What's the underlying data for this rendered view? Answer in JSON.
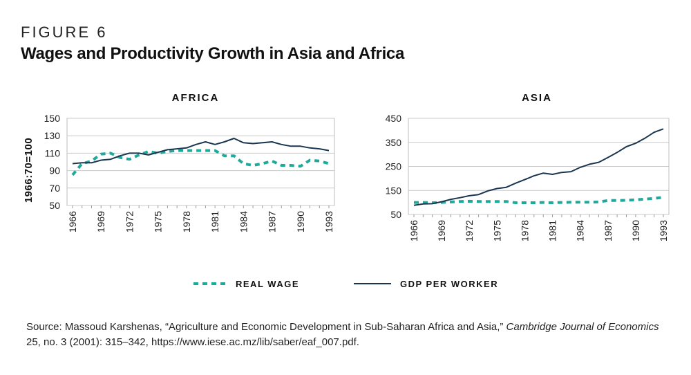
{
  "figure_label": "FIGURE 6",
  "title": "Wages and Productivity Growth in Asia and Africa",
  "y_axis_label": "1966:70=100",
  "legend": [
    {
      "name": "REAL WAGE",
      "color": "#1fa99a",
      "style": "dashed"
    },
    {
      "name": "GDP PER WORKER",
      "color": "#1a3550",
      "style": "solid"
    }
  ],
  "source": {
    "prefix": "Source: Massoud Karshenas, “Agriculture and Economic Development in Sub-Saharan Africa and Asia,” ",
    "journal": "Cambridge Journal of Economics",
    "suffix": " 25, no. 3 (2001): 315–342, https://www.iese.ac.mz/lib/saber/eaf_007.pdf."
  },
  "chart_data": [
    {
      "type": "line",
      "title": "AFRICA",
      "ylabel": "1966:70=100",
      "xlabel": "",
      "ylim": [
        50,
        150
      ],
      "yticks": [
        50,
        70,
        90,
        110,
        130,
        150
      ],
      "xticks": [
        "1966",
        "1969",
        "1972",
        "1975",
        "1978",
        "1981",
        "1984",
        "1987",
        "1990",
        "1993"
      ],
      "x": [
        1966,
        1967,
        1968,
        1969,
        1970,
        1971,
        1972,
        1973,
        1974,
        1975,
        1976,
        1977,
        1978,
        1979,
        1980,
        1981,
        1982,
        1983,
        1984,
        1985,
        1986,
        1987,
        1988,
        1989,
        1990,
        1991,
        1992,
        1993
      ],
      "series": [
        {
          "name": "REAL WAGE",
          "values": [
            85,
            98,
            101,
            109,
            110,
            105,
            103,
            108,
            112,
            110,
            112,
            113,
            113,
            113,
            113,
            113,
            107,
            107,
            98,
            96,
            98,
            101,
            96,
            96,
            95,
            102,
            101,
            98
          ]
        },
        {
          "name": "GDP PER WORKER",
          "values": [
            98,
            99,
            99,
            102,
            103,
            107,
            110,
            110,
            108,
            111,
            114,
            115,
            116,
            120,
            123,
            120,
            123,
            127,
            122,
            121,
            122,
            123,
            120,
            118,
            118,
            116,
            115,
            113
          ]
        }
      ]
    },
    {
      "type": "line",
      "title": "ASIA",
      "ylabel": "",
      "xlabel": "",
      "ylim": [
        50,
        450
      ],
      "yticks": [
        50,
        150,
        250,
        350,
        450
      ],
      "xticks": [
        "1966",
        "1969",
        "1972",
        "1975",
        "1978",
        "1981",
        "1984",
        "1987",
        "1990",
        "1993"
      ],
      "x": [
        1966,
        1967,
        1968,
        1969,
        1970,
        1971,
        1972,
        1973,
        1974,
        1975,
        1976,
        1977,
        1978,
        1979,
        1980,
        1981,
        1982,
        1983,
        1984,
        1985,
        1986,
        1987,
        1988,
        1989,
        1990,
        1991,
        1992,
        1993
      ],
      "series": [
        {
          "name": "REAL WAGE",
          "values": [
            100,
            100,
            99,
            100,
            102,
            104,
            105,
            104,
            104,
            104,
            104,
            99,
            99,
            99,
            100,
            99,
            100,
            101,
            101,
            101,
            102,
            108,
            108,
            109,
            111,
            114,
            117,
            121
          ]
        },
        {
          "name": "GDP PER WORKER",
          "values": [
            88,
            94,
            95,
            103,
            113,
            120,
            128,
            133,
            148,
            158,
            163,
            180,
            195,
            211,
            222,
            217,
            225,
            228,
            246,
            259,
            267,
            287,
            308,
            332,
            346,
            367,
            392,
            406
          ]
        }
      ]
    }
  ]
}
